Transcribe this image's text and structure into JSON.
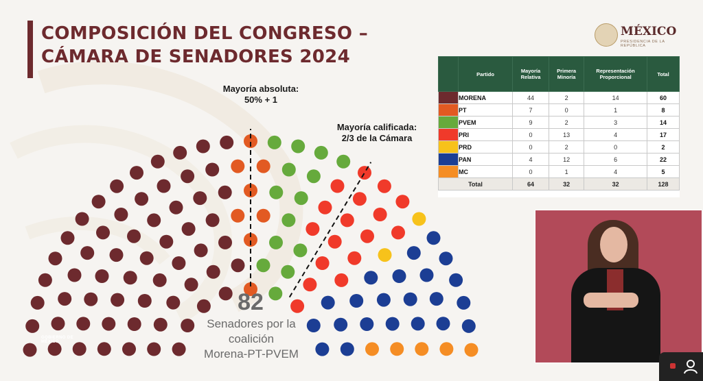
{
  "title": {
    "line1": "COMPOSICIÓN DEL CONGRESO –",
    "line2": "CÁMARA DE SENADORES 2024"
  },
  "logo": {
    "name": "MÉXICO",
    "subtitle": "PRESIDENCIA DE LA REPÚBLICA",
    "icon": "eagle-seal-icon"
  },
  "annotations": {
    "mayoria_absoluta": [
      "Mayoría absoluta:",
      "50% + 1"
    ],
    "mayoria_calificada": [
      "Mayoría calificada:",
      "2/3 de la Cámara"
    ]
  },
  "coalition": {
    "number": "82",
    "label_lines": [
      "Senadores por la",
      "coalición",
      "Morena-PT-PVEM"
    ]
  },
  "footer_logo_text": "GOBIERNO DE MÉXICO",
  "colors": {
    "brand": "#6d2a2e",
    "table_header": "#2a5a3f",
    "video_bg": "#b24a59"
  },
  "chart_data": {
    "type": "table",
    "title": "COMPOSICIÓN DEL CONGRESO – CÁMARA DE SENADORES 2024",
    "total_seats": 128,
    "columns": [
      "",
      "Partido",
      "Mayoría Relativa",
      "Primera Minoría",
      "Representación Proporcional",
      "Total"
    ],
    "rows": [
      {
        "party": "MORENA",
        "color": "#6d2a2e",
        "mayoria_relativa": 44,
        "primera_minoria": 2,
        "representacion_proporcional": 14,
        "total": 60
      },
      {
        "party": "PT",
        "color": "#e25a22",
        "mayoria_relativa": 7,
        "primera_minoria": 0,
        "representacion_proporcional": 1,
        "total": 8
      },
      {
        "party": "PVEM",
        "color": "#66aa3c",
        "mayoria_relativa": 9,
        "primera_minoria": 2,
        "representacion_proporcional": 3,
        "total": 14
      },
      {
        "party": "PRI",
        "color": "#f03a2a",
        "mayoria_relativa": 0,
        "primera_minoria": 13,
        "representacion_proporcional": 4,
        "total": 17
      },
      {
        "party": "PRD",
        "color": "#f7c21b",
        "mayoria_relativa": 0,
        "primera_minoria": 2,
        "representacion_proporcional": 0,
        "total": 2
      },
      {
        "party": "PAN",
        "color": "#1c3e94",
        "mayoria_relativa": 4,
        "primera_minoria": 12,
        "representacion_proporcional": 6,
        "total": 22
      },
      {
        "party": "MC",
        "color": "#f58d24",
        "mayoria_relativa": 0,
        "primera_minoria": 1,
        "representacion_proporcional": 4,
        "total": 5
      }
    ],
    "totals": {
      "label": "Total",
      "mayoria_relativa": 64,
      "primera_minoria": 32,
      "representacion_proporcional": 32,
      "total": 128
    },
    "seat_order": [
      "MORENA",
      "PT",
      "PVEM",
      "PRI",
      "PRD",
      "PAN",
      "MC"
    ]
  }
}
